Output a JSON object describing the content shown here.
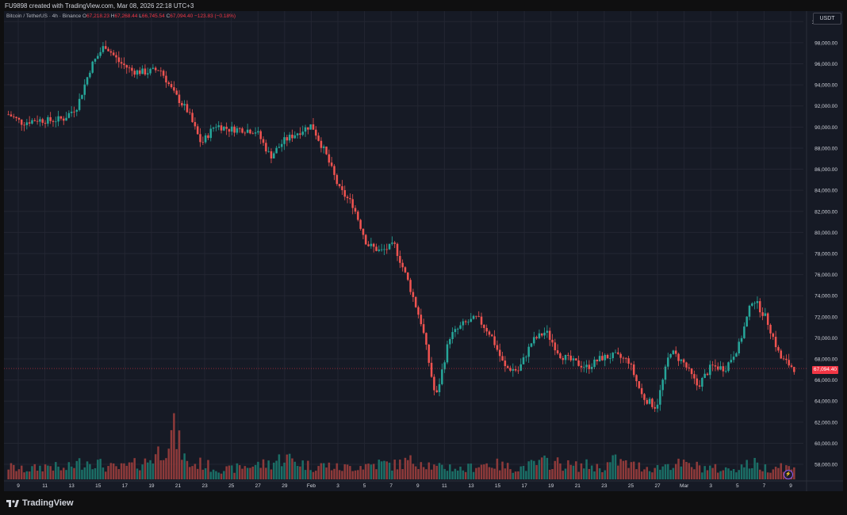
{
  "header": {
    "credit": "FU9898 created with TradingView.com, Mar 08, 2026 22:18 UTC+3"
  },
  "legend": {
    "symbol": "Bitcoin / TetherUS · 4h · Binance",
    "open_label": "O",
    "open": "67,218.23",
    "high_label": "H",
    "high": "67,268.44",
    "low_label": "L",
    "low": "66,745.54",
    "close_label": "C",
    "close": "67,094.40",
    "change": "−123.83 (−0.18%)"
  },
  "currency": "USDT",
  "last_price": "67,094.40",
  "brand": "TradingView",
  "colors": {
    "up": "#26a69a",
    "down": "#ef5350",
    "up_volume": "#1b6e66",
    "down_volume": "#8e3a3a",
    "grid": "#232632",
    "price_line": "#f23645",
    "text": "#d1d4dc"
  },
  "chart_data": {
    "type": "candlestick",
    "title": "",
    "ylim": [
      56500,
      101000
    ],
    "y_tick_labels": [
      "58,000.00",
      "60,000.00",
      "62,000.00",
      "64,000.00",
      "66,000.00",
      "68,000.00",
      "70,000.00",
      "72,000.00",
      "74,000.00",
      "76,000.00",
      "78,000.00",
      "80,000.00",
      "82,000.00",
      "84,000.00",
      "86,000.00",
      "88,000.00",
      "90,000.00",
      "92,000.00",
      "94,000.00",
      "96,000.00",
      "98,000.00",
      "100,000.00"
    ],
    "y_tick_values": [
      58000,
      60000,
      62000,
      64000,
      66000,
      68000,
      70000,
      72000,
      74000,
      76000,
      78000,
      80000,
      82000,
      84000,
      86000,
      88000,
      90000,
      92000,
      94000,
      96000,
      98000,
      100000
    ],
    "x_tick_labels": [
      "9",
      "11",
      "13",
      "15",
      "17",
      "19",
      "21",
      "23",
      "25",
      "27",
      "29",
      "Feb",
      "3",
      "5",
      "7",
      "9",
      "11",
      "13",
      "15",
      "17",
      "19",
      "21",
      "23",
      "25",
      "27",
      "Mar",
      "3",
      "5",
      "7",
      "9"
    ],
    "x_tick_index": [
      0,
      1,
      2,
      3,
      4,
      5,
      6,
      7,
      8,
      9,
      10,
      11,
      12,
      13,
      14,
      15,
      16,
      17,
      18,
      19,
      20,
      21,
      22,
      23,
      24,
      25,
      26,
      27,
      28,
      29
    ],
    "price_path": [
      [
        0,
        91200
      ],
      [
        1,
        90400
      ],
      [
        2,
        90700
      ],
      [
        3,
        90600
      ],
      [
        4,
        90800
      ],
      [
        5,
        92000
      ],
      [
        6,
        95800
      ],
      [
        7,
        97800
      ],
      [
        8,
        96200
      ],
      [
        9,
        95300
      ],
      [
        10,
        95200
      ],
      [
        11,
        95500
      ],
      [
        12,
        93200
      ],
      [
        13,
        91500
      ],
      [
        14,
        88400
      ],
      [
        15,
        90200
      ],
      [
        16,
        89800
      ],
      [
        17,
        89800
      ],
      [
        18,
        89600
      ],
      [
        19,
        87200
      ],
      [
        20,
        88700
      ],
      [
        21,
        89500
      ],
      [
        22,
        90200
      ],
      [
        23,
        87500
      ],
      [
        24,
        84100
      ],
      [
        25,
        82600
      ],
      [
        26,
        78900
      ],
      [
        27,
        78200
      ],
      [
        28,
        78800
      ],
      [
        29,
        75300
      ],
      [
        30,
        71200
      ],
      [
        31,
        64200
      ],
      [
        32,
        70100
      ],
      [
        33,
        71300
      ],
      [
        34,
        71900
      ],
      [
        35,
        70300
      ],
      [
        36,
        67200
      ],
      [
        37,
        66900
      ],
      [
        38,
        69700
      ],
      [
        39,
        70600
      ],
      [
        40,
        68400
      ],
      [
        41,
        67700
      ],
      [
        42,
        67200
      ],
      [
        43,
        68100
      ],
      [
        44,
        68300
      ],
      [
        45,
        67800
      ],
      [
        46,
        64400
      ],
      [
        47,
        63400
      ],
      [
        48,
        68800
      ],
      [
        49,
        67600
      ],
      [
        50,
        65400
      ],
      [
        51,
        67300
      ],
      [
        52,
        67100
      ],
      [
        53,
        69300
      ],
      [
        54,
        73800
      ],
      [
        55,
        71800
      ],
      [
        56,
        68100
      ],
      [
        57,
        67100
      ]
    ],
    "volume_scale": [
      0,
      100
    ],
    "volume_path": [
      8,
      6,
      7,
      9,
      6,
      10,
      12,
      8,
      7,
      9,
      11,
      18,
      30,
      9,
      10,
      7,
      6,
      8,
      9,
      10,
      14,
      11,
      8,
      9,
      7,
      8,
      9,
      10,
      9,
      11,
      12,
      7,
      8,
      6,
      9,
      10,
      8,
      7,
      9,
      11,
      10,
      8,
      9,
      7,
      12,
      9,
      8,
      7,
      10,
      9,
      8,
      7,
      6,
      8,
      10,
      7,
      9,
      6
    ]
  }
}
